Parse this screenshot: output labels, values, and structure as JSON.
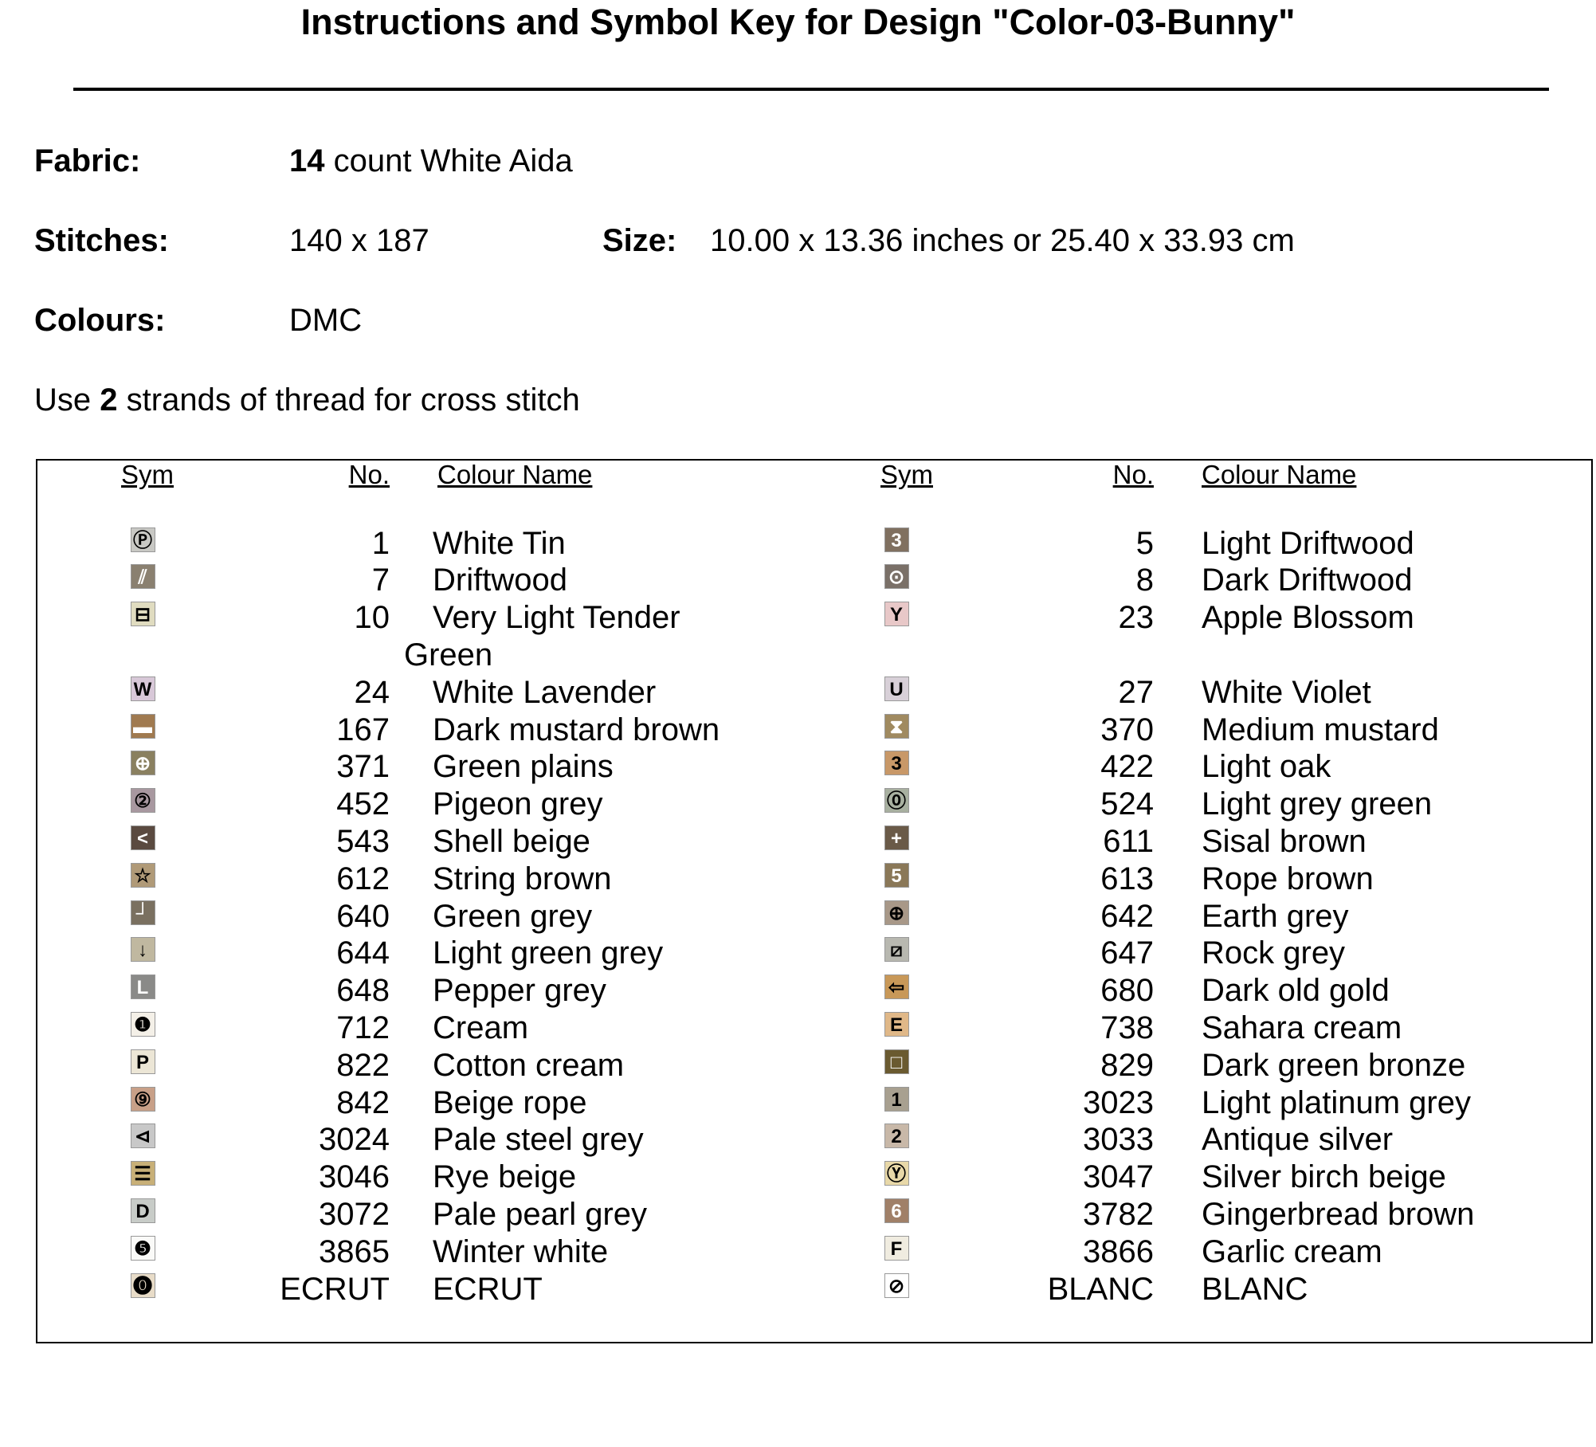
{
  "header": {
    "title": "Instructions and Symbol Key for Design \"Color-03-Bunny\""
  },
  "details": {
    "fabric": {
      "label": "Fabric:",
      "count": "14",
      "text": "count White Aida"
    },
    "stitches": {
      "label": "Stitches:",
      "value": "140 x 187"
    },
    "size": {
      "label": "Size:",
      "value": "10.00 x 13.36 inches or 25.40 x 33.93 cm"
    },
    "colours": {
      "label": "Colours:",
      "value": "DMC"
    },
    "instruction": {
      "before": "Use",
      "strands": "2",
      "after": "strands of thread for cross stitch"
    }
  },
  "table": {
    "headers": [
      "Sym",
      "No.",
      "Colour Name"
    ],
    "left": [
      {
        "sym": "Ⓟ",
        "color": "#c8c8c4",
        "no": "1",
        "name": "White Tin"
      },
      {
        "sym": "⫽",
        "color": "#8a8070",
        "no": "7",
        "name": "Driftwood"
      },
      {
        "sym": "⊟",
        "color": "#e0dcc0",
        "no": "10",
        "name": "Very Light Tender Green"
      },
      {
        "sym": "W",
        "color": "#d8c8d8",
        "no": "24",
        "name": "White Lavender"
      },
      {
        "sym": "▬",
        "color": "#a07a50",
        "no": "167",
        "name": "Dark mustard brown"
      },
      {
        "sym": "⊕",
        "color": "#8a8060",
        "no": "371",
        "name": "Green plains"
      },
      {
        "sym": "②",
        "color": "#a898a0",
        "no": "452",
        "name": "Pigeon grey"
      },
      {
        "sym": "<",
        "color": "#5a4a40",
        "no": "543",
        "name": "Shell beige"
      },
      {
        "sym": "☆",
        "color": "#b09a78",
        "no": "612",
        "name": "String brown"
      },
      {
        "sym": "┘",
        "color": "#7a7060",
        "no": "640",
        "name": "Green grey"
      },
      {
        "sym": "↓",
        "color": "#c0b8a0",
        "no": "644",
        "name": "Light green grey"
      },
      {
        "sym": "L",
        "color": "#8a8a88",
        "no": "648",
        "name": "Pepper grey"
      },
      {
        "sym": "❶",
        "color": "#f4f0e8",
        "no": "712",
        "name": "Cream"
      },
      {
        "sym": "P",
        "color": "#ece6d6",
        "no": "822",
        "name": "Cotton cream"
      },
      {
        "sym": "⑨",
        "color": "#c8a088",
        "no": "842",
        "name": "Beige rope"
      },
      {
        "sym": "⊲",
        "color": "#c8c8c8",
        "no": "3024",
        "name": "Pale steel grey"
      },
      {
        "sym": "☰",
        "color": "#c8b078",
        "no": "3046",
        "name": "Rye beige"
      },
      {
        "sym": "D",
        "color": "#c8ccc8",
        "no": "3072",
        "name": "Pale pearl grey"
      },
      {
        "sym": "❺",
        "color": "#fafaf8",
        "no": "3865",
        "name": "Winter white"
      },
      {
        "sym": "⓿",
        "color": "#e8dcc8",
        "no": "ECRUT",
        "name": "ECRUT"
      }
    ],
    "right": [
      {
        "sym": "3",
        "color": "#807060",
        "no": "5",
        "name": "Light Driftwood"
      },
      {
        "sym": "⊙",
        "color": "#7a7068",
        "no": "8",
        "name": "Dark Driftwood"
      },
      {
        "sym": "Y",
        "color": "#e8c8c8",
        "no": "23",
        "name": "Apple Blossom"
      },
      {
        "sym": "U",
        "color": "#d8d0d8",
        "no": "27",
        "name": "White Violet"
      },
      {
        "sym": "⧗",
        "color": "#a08a60",
        "no": "370",
        "name": "Medium mustard"
      },
      {
        "sym": "3",
        "color": "#c89868",
        "no": "422",
        "name": "Light oak"
      },
      {
        "sym": "⓪",
        "color": "#a8b0a0",
        "no": "524",
        "name": "Light grey green"
      },
      {
        "sym": "+",
        "color": "#6a5a48",
        "no": "611",
        "name": "Sisal brown"
      },
      {
        "sym": "5",
        "color": "#8a7858",
        "no": "613",
        "name": "Rope brown"
      },
      {
        "sym": "⊕",
        "color": "#a89888",
        "no": "642",
        "name": "Earth grey"
      },
      {
        "sym": "⧄",
        "color": "#b8b8b0",
        "no": "647",
        "name": "Rock grey"
      },
      {
        "sym": "⇦",
        "color": "#c89858",
        "no": "680",
        "name": "Dark old gold"
      },
      {
        "sym": "E",
        "color": "#e0b888",
        "no": "738",
        "name": "Sahara cream"
      },
      {
        "sym": "□",
        "color": "#6a5a30",
        "no": "829",
        "name": "Dark green bronze"
      },
      {
        "sym": "1",
        "color": "#a8a090",
        "no": "3023",
        "name": "Light platinum grey"
      },
      {
        "sym": "2",
        "color": "#c8b8a8",
        "no": "3033",
        "name": "Antique silver"
      },
      {
        "sym": "Ⓨ",
        "color": "#e8d8a8",
        "no": "3047",
        "name": "Silver birch beige"
      },
      {
        "sym": "6",
        "color": "#a08068",
        "no": "3782",
        "name": "Gingerbread brown"
      },
      {
        "sym": "F",
        "color": "#f0ece0",
        "no": "3866",
        "name": "Garlic cream"
      },
      {
        "sym": "⊘",
        "color": "#ffffff",
        "no": "BLANC",
        "name": "BLANC"
      }
    ]
  }
}
